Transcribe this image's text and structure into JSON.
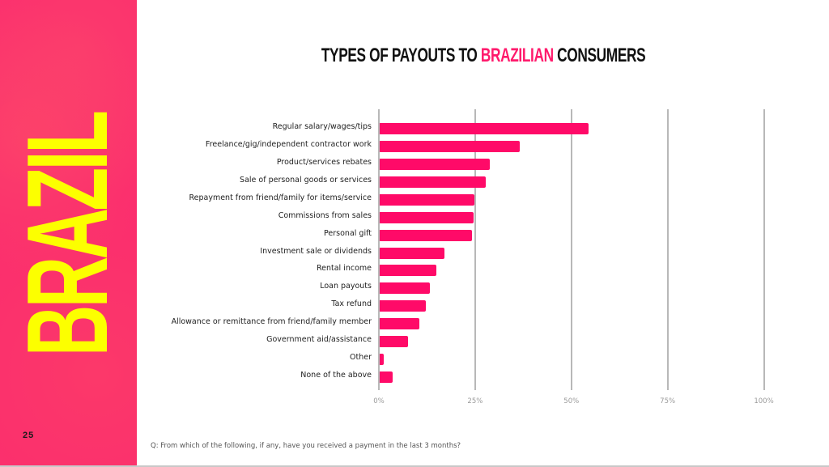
{
  "side_panel": {
    "word": "BRAZIL",
    "page_number": "25",
    "background_color": "#fb2d6e",
    "text_color": "#fcff00"
  },
  "title": {
    "part1": "TYPES OF PAYOUTS TO ",
    "accent": "BRAZILIAN",
    "part2": " CONSUMERS",
    "accent_color": "#ff1a6c"
  },
  "footnote": "Q: From which of the following, if any, have you received a payment in the last 3 months?",
  "chart_data": {
    "type": "bar",
    "orientation": "horizontal",
    "title": "TYPES OF PAYOUTS TO BRAZILIAN CONSUMERS",
    "xlabel": "",
    "ylabel": "",
    "xlim": [
      0,
      100
    ],
    "x_ticks": [
      "0%",
      "25%",
      "50%",
      "75%",
      "100%"
    ],
    "grid": true,
    "bar_color": "#ff0a68",
    "categories": [
      "Regular salary/wages/tips",
      "Freelance/gig/independent contractor work",
      "Product/services rebates",
      "Sale of personal goods or services",
      "Repayment from friend/family for items/service",
      "Commissions from sales",
      "Personal gift",
      "Investment sale or dividends",
      "Rental income",
      "Loan payouts",
      "Tax refund",
      "Allowance or remittance from friend/family member",
      "Government aid/assistance",
      "Other",
      "None of the above"
    ],
    "values": [
      54.3,
      36.3,
      28.5,
      27.5,
      24.7,
      24.3,
      24.0,
      16.8,
      14.7,
      13.0,
      11.9,
      10.3,
      7.4,
      1.1,
      3.4
    ],
    "unit": "%"
  }
}
